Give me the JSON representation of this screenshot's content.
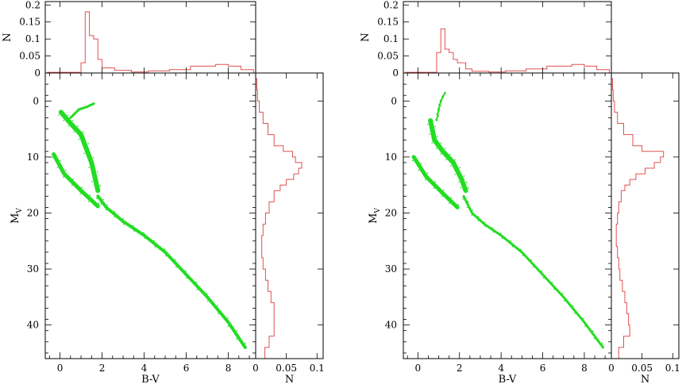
{
  "chart_data": [
    {
      "type": "scatter",
      "panel": "left",
      "xlabel": "B-V",
      "ylabel": "M",
      "ylabel_sub": "V",
      "top_hist_ylabel": "N",
      "side_hist_xlabel": "N",
      "xlim": [
        -0.7,
        9.3
      ],
      "ylim": [
        46,
        -5
      ],
      "x_ticks": [
        "0",
        "2",
        "4",
        "6",
        "8"
      ],
      "y_ticks": [
        "0",
        "10",
        "20",
        "30",
        "40"
      ],
      "top_hist": {
        "ylim": [
          0,
          0.21
        ],
        "ticks": [
          "0",
          "0.05",
          "0.1",
          "0.15",
          "0.2"
        ],
        "edges": [
          -0.6,
          1.0,
          1.2,
          1.4,
          1.6,
          1.8,
          2.0,
          2.6,
          3.4,
          4.2,
          5.2,
          6.2,
          7.4,
          8.0,
          8.6,
          9.2
        ],
        "values": [
          0.002,
          0.03,
          0.18,
          0.11,
          0.1,
          0.04,
          0.015,
          0.008,
          0.003,
          0.006,
          0.01,
          0.02,
          0.025,
          0.02,
          0.01
        ]
      },
      "side_hist": {
        "xlim": [
          0,
          0.11
        ],
        "ticks": [
          "0",
          "0.05",
          "0.1"
        ],
        "edges": [
          -4,
          -2,
          0,
          2,
          4,
          6,
          8,
          9,
          10,
          11,
          12,
          13,
          14,
          15,
          16,
          18,
          20,
          22,
          24,
          26,
          28,
          30,
          32,
          34,
          36,
          38,
          40,
          42,
          44,
          46
        ],
        "values": [
          0.002,
          0.003,
          0.006,
          0.012,
          0.02,
          0.03,
          0.045,
          0.06,
          0.065,
          0.075,
          0.07,
          0.062,
          0.05,
          0.04,
          0.03,
          0.022,
          0.016,
          0.012,
          0.01,
          0.01,
          0.012,
          0.016,
          0.02,
          0.025,
          0.03,
          0.03,
          0.03,
          0.022,
          0.015
        ]
      },
      "sequences": [
        {
          "name": "",
          "x": [
            0.05,
            0.5,
            1.0,
            1.5,
            1.8
          ],
          "y": [
            2,
            4,
            6,
            11,
            16
          ],
          "width": 6
        },
        {
          "name": "",
          "x": [
            1.8,
            2.2,
            3.0,
            4.0,
            5.0,
            6.0,
            7.0,
            8.0,
            8.8
          ],
          "y": [
            17,
            19,
            21.5,
            24,
            27,
            31,
            35,
            39.5,
            44
          ],
          "width": 4
        },
        {
          "name": "",
          "x": [
            -0.3,
            0.2,
            1.0,
            1.8
          ],
          "y": [
            9.5,
            13,
            16,
            18.8
          ],
          "width": 5
        },
        {
          "name": "",
          "x": [
            0.5,
            0.9,
            1.3,
            1.6
          ],
          "y": [
            3,
            1.5,
            1.0,
            0.5
          ],
          "width": 3
        }
      ]
    },
    {
      "type": "scatter",
      "panel": "right",
      "xlabel": "B-V",
      "ylabel": "M",
      "ylabel_sub": "V",
      "top_hist_ylabel": "N",
      "side_hist_xlabel": "N",
      "xlim": [
        -0.7,
        9.3
      ],
      "ylim": [
        46,
        -5
      ],
      "x_ticks": [
        "0",
        "2",
        "4",
        "6",
        "8"
      ],
      "y_ticks": [
        "0",
        "10",
        "20",
        "30",
        "40"
      ],
      "top_hist": {
        "ylim": [
          0,
          0.21
        ],
        "ticks": [
          "0",
          "0.05",
          "0.1",
          "0.15",
          "0.2"
        ],
        "edges": [
          -0.6,
          0.9,
          1.1,
          1.3,
          1.5,
          1.7,
          1.9,
          2.3,
          2.6,
          3.4,
          4.2,
          5.2,
          6.2,
          7.4,
          8.0,
          8.6,
          9.2
        ],
        "values": [
          0.002,
          0.06,
          0.13,
          0.07,
          0.06,
          0.04,
          0.03,
          0.012,
          0.005,
          0.003,
          0.006,
          0.012,
          0.02,
          0.025,
          0.02,
          0.01
        ]
      },
      "side_hist": {
        "xlim": [
          0,
          0.11
        ],
        "ticks": [
          "0",
          "0.05",
          "0.1"
        ],
        "edges": [
          -4,
          -2,
          0,
          2,
          4,
          6,
          8,
          9,
          10,
          11,
          12,
          13,
          14,
          15,
          16,
          18,
          20,
          22,
          24,
          26,
          28,
          30,
          32,
          34,
          36,
          38,
          40,
          42,
          44,
          46
        ],
        "values": [
          0.002,
          0.003,
          0.005,
          0.01,
          0.02,
          0.035,
          0.05,
          0.085,
          0.08,
          0.07,
          0.055,
          0.04,
          0.03,
          0.022,
          0.016,
          0.012,
          0.01,
          0.008,
          0.008,
          0.01,
          0.012,
          0.014,
          0.018,
          0.022,
          0.025,
          0.028,
          0.03,
          0.02,
          0.012
        ]
      },
      "sequences": [
        {
          "name": "",
          "x": [
            0.6,
            0.8,
            1.2,
            1.7,
            2.1,
            2.3
          ],
          "y": [
            3.5,
            7,
            9,
            11,
            14,
            16
          ],
          "width": 6
        },
        {
          "name": "",
          "x": [
            2.2,
            2.6,
            3.2,
            4.0,
            5.0,
            6.0,
            7.0,
            8.0,
            8.9
          ],
          "y": [
            17,
            20,
            22,
            24,
            27,
            31,
            35,
            39.5,
            44
          ],
          "width": 3
        },
        {
          "name": "",
          "x": [
            -0.2,
            0.4,
            1.2,
            1.9
          ],
          "y": [
            10,
            13.5,
            16.5,
            19
          ],
          "width": 5
        },
        {
          "name": "",
          "x": [
            0.9,
            1.0,
            1.1,
            1.3
          ],
          "y": [
            3.5,
            1.5,
            0,
            -1.5
          ],
          "width": 2
        }
      ]
    }
  ]
}
